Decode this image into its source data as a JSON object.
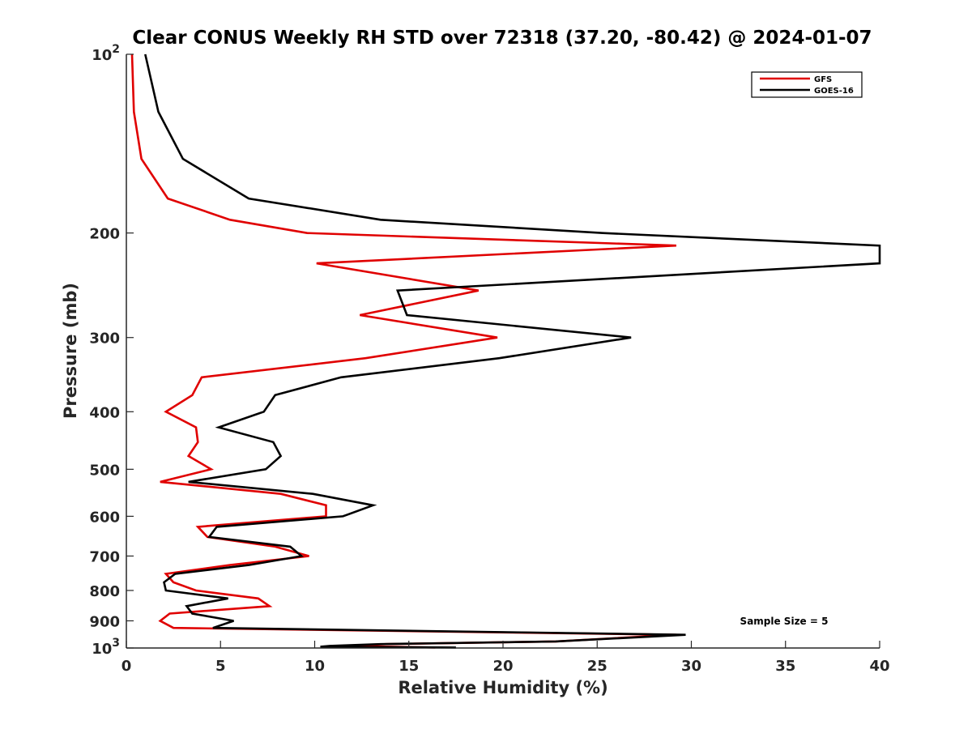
{
  "chart_data": {
    "type": "line",
    "title": "Clear CONUS Weekly RH STD over 72318 (37.20, -80.42) @ 2024-01-07",
    "xlabel": "Relative Humidity (%)",
    "ylabel": "Pressure (mb)",
    "xlim": [
      0,
      40
    ],
    "ylim": [
      100,
      1000
    ],
    "y_scale": "log",
    "y_reversed": true,
    "grid": false,
    "legend_position": "top-right",
    "x_ticks": [
      "0",
      "5",
      "10",
      "15",
      "20",
      "25",
      "30",
      "35",
      "40"
    ],
    "y_ticks": [
      {
        "value": 100,
        "base": "10",
        "exp": "2"
      },
      {
        "value": 200,
        "base": "200"
      },
      {
        "value": 300,
        "base": "300"
      },
      {
        "value": 400,
        "base": "400"
      },
      {
        "value": 500,
        "base": "500"
      },
      {
        "value": 600,
        "base": "600"
      },
      {
        "value": 700,
        "base": "700"
      },
      {
        "value": 800,
        "base": "800"
      },
      {
        "value": 900,
        "base": "900"
      },
      {
        "value": 1000,
        "base": "10",
        "exp": "3"
      }
    ],
    "series": [
      {
        "name": "GFS",
        "color": "#e00000",
        "points": [
          [
            0.3,
            100
          ],
          [
            0.4,
            125
          ],
          [
            0.8,
            150
          ],
          [
            2.2,
            175
          ],
          [
            5.5,
            190
          ],
          [
            9.6,
            200
          ],
          [
            29.2,
            210
          ],
          [
            10.1,
            225
          ],
          [
            18.7,
            250
          ],
          [
            12.4,
            275
          ],
          [
            19.7,
            300
          ],
          [
            12.7,
            325
          ],
          [
            4.0,
            350
          ],
          [
            3.5,
            375
          ],
          [
            2.1,
            400
          ],
          [
            3.7,
            425
          ],
          [
            3.8,
            450
          ],
          [
            3.3,
            475
          ],
          [
            4.5,
            500
          ],
          [
            1.8,
            525
          ],
          [
            8.2,
            550
          ],
          [
            10.6,
            575
          ],
          [
            10.6,
            600
          ],
          [
            3.8,
            625
          ],
          [
            4.3,
            650
          ],
          [
            7.9,
            675
          ],
          [
            9.7,
            700
          ],
          [
            5.5,
            725
          ],
          [
            2.1,
            750
          ],
          [
            2.5,
            775
          ],
          [
            3.7,
            800
          ],
          [
            7.0,
            825
          ],
          [
            7.6,
            850
          ],
          [
            2.3,
            875
          ],
          [
            1.8,
            900
          ],
          [
            2.5,
            925
          ],
          [
            29.2,
            950
          ],
          [
            22.8,
            975
          ],
          [
            13.8,
            985
          ],
          [
            11.6,
            992
          ],
          [
            16.4,
            998
          ]
        ]
      },
      {
        "name": "GOES-16",
        "color": "#000000",
        "points": [
          [
            1.0,
            100
          ],
          [
            1.7,
            125
          ],
          [
            3.0,
            150
          ],
          [
            6.5,
            175
          ],
          [
            13.5,
            190
          ],
          [
            25.3,
            200
          ],
          [
            40.0,
            210
          ],
          [
            40.0,
            225
          ],
          [
            14.4,
            250
          ],
          [
            14.9,
            275
          ],
          [
            26.8,
            300
          ],
          [
            19.8,
            325
          ],
          [
            11.4,
            350
          ],
          [
            7.9,
            375
          ],
          [
            7.3,
            400
          ],
          [
            4.9,
            425
          ],
          [
            7.8,
            450
          ],
          [
            8.2,
            475
          ],
          [
            7.4,
            500
          ],
          [
            3.3,
            525
          ],
          [
            9.9,
            550
          ],
          [
            13.1,
            575
          ],
          [
            11.5,
            600
          ],
          [
            4.8,
            625
          ],
          [
            4.4,
            650
          ],
          [
            8.7,
            675
          ],
          [
            9.3,
            700
          ],
          [
            6.5,
            725
          ],
          [
            2.6,
            750
          ],
          [
            2.0,
            775
          ],
          [
            2.1,
            800
          ],
          [
            5.4,
            825
          ],
          [
            3.2,
            850
          ],
          [
            3.5,
            875
          ],
          [
            5.7,
            900
          ],
          [
            4.6,
            925
          ],
          [
            29.7,
            950
          ],
          [
            22.8,
            975
          ],
          [
            13.5,
            985
          ],
          [
            10.8,
            992
          ],
          [
            10.3,
            995
          ],
          [
            17.5,
            998
          ]
        ]
      }
    ],
    "annotation": "Sample Size = 5"
  }
}
